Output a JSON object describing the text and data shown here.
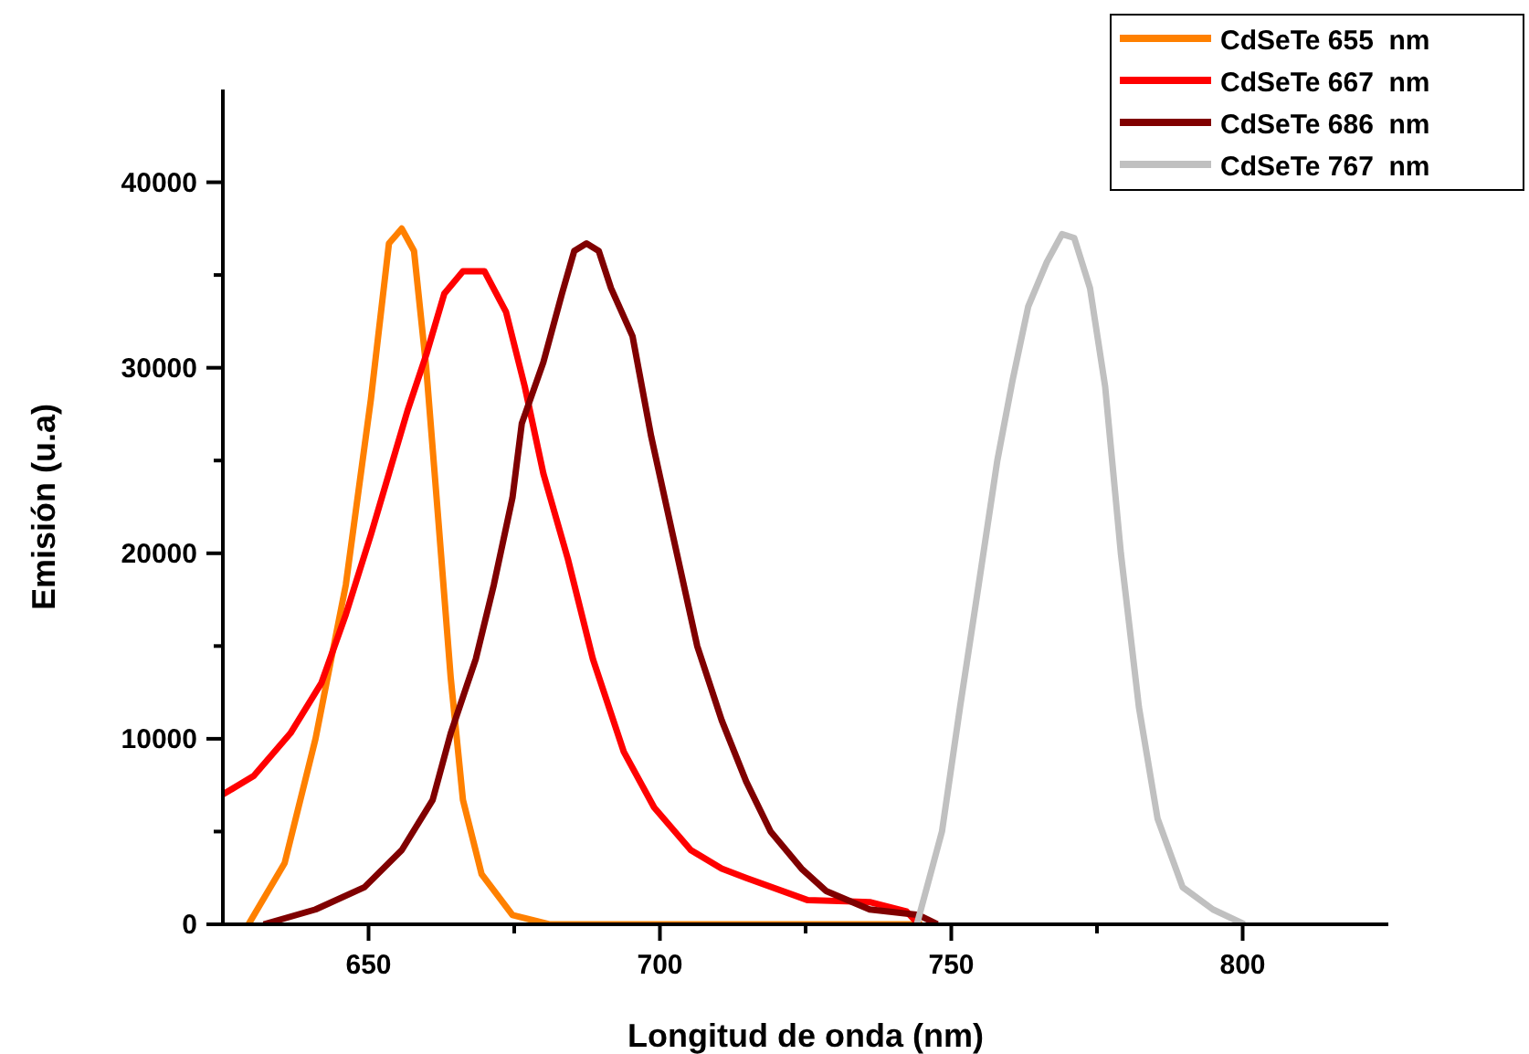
{
  "chart_data": {
    "type": "line",
    "xlabel": "Longitud de onda (nm)",
    "ylabel": "Emisión (u.a)",
    "xlim": [
      625,
      825
    ],
    "ylim": [
      0,
      45000
    ],
    "xticks": [
      650,
      {
        "value": 675,
        "label": null
      },
      700,
      {
        "value": 725,
        "label": null
      },
      750,
      {
        "value": 775,
        "label": null
      },
      800
    ],
    "yticks": [
      0,
      {
        "value": 5000,
        "label": null
      },
      10000,
      {
        "value": 15000,
        "label": null
      },
      20000,
      {
        "value": 25000,
        "label": null
      },
      30000,
      {
        "value": 35000,
        "label": null
      },
      40000
    ],
    "legend": "top right",
    "grid": false,
    "line_style": "solid",
    "series": [
      {
        "name": "CdSeTe 655  nm",
        "color": "#ff8000",
        "x": [
          629.4,
          635.6,
          640.9,
          646.1,
          650.4,
          653.5,
          655.7,
          657.8,
          659.9,
          662.0,
          664.1,
          666.2,
          669.4,
          674.7,
          681,
          700,
          720,
          745
        ],
        "values": [
          0,
          3300,
          10000,
          18300,
          28300,
          36700,
          37500,
          36300,
          30000,
          21700,
          13300,
          6700,
          2700,
          500,
          0,
          0,
          0,
          0
        ]
      },
      {
        "name": "CdSeTe 667  nm",
        "color": "#ff0000",
        "x": [
          625,
          630.3,
          636.6,
          641.9,
          646.1,
          650.4,
          653.5,
          656.7,
          659.9,
          663.0,
          666.2,
          669.9,
          673.6,
          676.8,
          680,
          684.2,
          688.5,
          693.8,
          699.0,
          705.3,
          710.6,
          714.8,
          725.4,
          736.0,
          742.3,
          744.4
        ],
        "values": [
          7000,
          8000,
          10300,
          13000,
          16700,
          21000,
          24300,
          27700,
          30700,
          34000,
          35200,
          35200,
          33000,
          29000,
          24300,
          19700,
          14300,
          9300,
          6300,
          4000,
          3000,
          2500,
          1300,
          1200,
          700,
          0
        ]
      },
      {
        "name": "CdSeTe 686  nm",
        "color": "#800000",
        "x": [
          632,
          640.9,
          649.3,
          655.7,
          661,
          664.1,
          668.4,
          671.5,
          674.7,
          676.3,
          680,
          683.2,
          685.3,
          687.4,
          689.5,
          691.6,
          695.3,
          698.5,
          702.2,
          706.4,
          710.6,
          714.8,
          719,
          724.3,
          728.5,
          736,
          744.4,
          747.6
        ],
        "values": [
          0,
          800,
          2000,
          4000,
          6700,
          10300,
          14300,
          18300,
          23000,
          27000,
          30300,
          34000,
          36300,
          36700,
          36300,
          34300,
          31700,
          26300,
          21000,
          15000,
          11000,
          7700,
          5000,
          3000,
          1800,
          800,
          500,
          0
        ]
      },
      {
        "name": "CdSeTe 767  nm",
        "color": "#c0c0c0",
        "x": [
          744.1,
          748.4,
          751.5,
          754.7,
          757.9,
          760.5,
          763.2,
          766.4,
          769.0,
          771.1,
          773.8,
          776.4,
          779.1,
          782.2,
          785.4,
          789.7,
          794.9,
          800.3
        ],
        "values": [
          0,
          5000,
          11700,
          18300,
          25000,
          29300,
          33300,
          35700,
          37200,
          37000,
          34300,
          29000,
          20000,
          11700,
          5700,
          2000,
          800,
          0
        ]
      }
    ]
  }
}
